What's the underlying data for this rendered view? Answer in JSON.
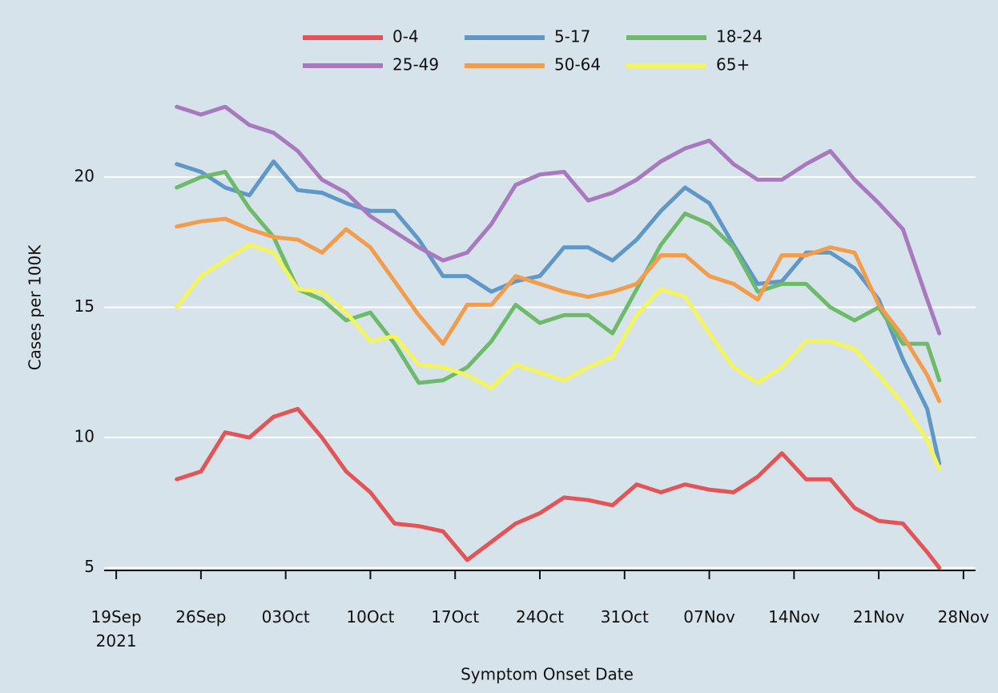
{
  "chart_data": {
    "type": "line",
    "x_label": "Symptom Onset Date",
    "y_label": "Cases per 100K",
    "x": [
      "2021-09-24",
      "2021-09-26",
      "2021-09-28",
      "2021-09-30",
      "2021-10-02",
      "2021-10-04",
      "2021-10-06",
      "2021-10-08",
      "2021-10-10",
      "2021-10-12",
      "2021-10-14",
      "2021-10-16",
      "2021-10-18",
      "2021-10-20",
      "2021-10-22",
      "2021-10-24",
      "2021-10-26",
      "2021-10-28",
      "2021-10-30",
      "2021-11-01",
      "2021-11-03",
      "2021-11-05",
      "2021-11-07",
      "2021-11-09",
      "2021-11-11",
      "2021-11-13",
      "2021-11-15",
      "2021-11-17",
      "2021-11-19",
      "2021-11-21",
      "2021-11-23",
      "2021-11-25",
      "2021-11-26"
    ],
    "series": [
      {
        "name": "0-4",
        "color": "#e35456",
        "values": [
          8.4,
          8.7,
          10.2,
          10.0,
          10.8,
          11.1,
          10.0,
          8.7,
          7.9,
          6.7,
          6.6,
          6.4,
          5.3,
          6.0,
          6.7,
          7.1,
          7.7,
          7.6,
          7.4,
          8.2,
          7.9,
          8.2,
          8.0,
          7.9,
          8.5,
          9.4,
          8.4,
          8.4,
          7.3,
          6.8,
          6.7,
          5.6,
          5.0
        ]
      },
      {
        "name": "5-17",
        "color": "#5f98c8",
        "values": [
          20.5,
          20.2,
          19.6,
          19.3,
          20.6,
          19.5,
          19.4,
          19.0,
          18.7,
          18.7,
          17.6,
          16.2,
          16.2,
          15.6,
          16.0,
          16.2,
          17.3,
          17.3,
          16.8,
          17.6,
          18.7,
          19.6,
          19.0,
          17.4,
          15.9,
          16.0,
          17.1,
          17.1,
          16.5,
          15.3,
          13.0,
          11.1,
          9.0
        ]
      },
      {
        "name": "18-24",
        "color": "#6dbb6a",
        "values": [
          19.6,
          20.0,
          20.2,
          18.8,
          17.7,
          15.7,
          15.3,
          14.5,
          14.8,
          13.6,
          12.1,
          12.2,
          12.7,
          13.7,
          15.1,
          14.4,
          14.7,
          14.7,
          14.0,
          15.7,
          17.4,
          18.6,
          18.2,
          17.3,
          15.6,
          15.9,
          15.9,
          15.0,
          14.5,
          15.0,
          13.6,
          13.6,
          12.2
        ]
      },
      {
        "name": "25-49",
        "color": "#a879bf",
        "values": [
          22.7,
          22.4,
          22.7,
          22.0,
          21.7,
          21.0,
          19.9,
          19.4,
          18.5,
          17.9,
          17.3,
          16.8,
          17.1,
          18.2,
          19.7,
          20.1,
          20.2,
          19.1,
          19.4,
          19.9,
          20.6,
          21.1,
          21.4,
          20.5,
          19.9,
          19.9,
          20.5,
          21.0,
          19.9,
          19.0,
          18.0,
          15.3,
          14.0
        ]
      },
      {
        "name": "50-64",
        "color": "#f39c4c",
        "values": [
          18.1,
          18.3,
          18.4,
          18.0,
          17.7,
          17.6,
          17.1,
          18.0,
          17.3,
          16.0,
          14.7,
          13.6,
          15.1,
          15.1,
          16.2,
          15.9,
          15.6,
          15.4,
          15.6,
          15.9,
          17.0,
          17.0,
          16.2,
          15.9,
          15.3,
          17.0,
          17.0,
          17.3,
          17.1,
          15.1,
          13.9,
          12.4,
          11.4
        ]
      },
      {
        "name": "65+",
        "color": "#f4f45e",
        "values": [
          15.0,
          16.2,
          16.8,
          17.4,
          17.1,
          15.7,
          15.6,
          14.8,
          13.7,
          13.9,
          12.8,
          12.7,
          12.4,
          11.9,
          12.8,
          12.5,
          12.2,
          12.7,
          13.1,
          14.7,
          15.7,
          15.4,
          14.0,
          12.7,
          12.1,
          12.7,
          13.7,
          13.7,
          13.4,
          12.4,
          11.3,
          9.9,
          8.8
        ]
      }
    ],
    "xlim": [
      "2021-09-18",
      "2021-11-29"
    ],
    "xticks": [
      {
        "value": "2021-09-19",
        "label": "19Sep\n2021"
      },
      {
        "value": "2021-09-26",
        "label": "26Sep"
      },
      {
        "value": "2021-10-03",
        "label": "03Oct"
      },
      {
        "value": "2021-10-10",
        "label": "10Oct"
      },
      {
        "value": "2021-10-17",
        "label": "17Oct"
      },
      {
        "value": "2021-10-24",
        "label": "24Oct"
      },
      {
        "value": "2021-10-31",
        "label": "31Oct"
      },
      {
        "value": "2021-11-07",
        "label": "07Nov"
      },
      {
        "value": "2021-11-14",
        "label": "14Nov"
      },
      {
        "value": "2021-11-21",
        "label": "21Nov"
      },
      {
        "value": "2021-11-28",
        "label": "28Nov"
      }
    ],
    "ylim": [
      4.9,
      24
    ],
    "yticks": [
      5,
      10,
      15,
      20
    ],
    "grid": true,
    "legend": "top"
  }
}
